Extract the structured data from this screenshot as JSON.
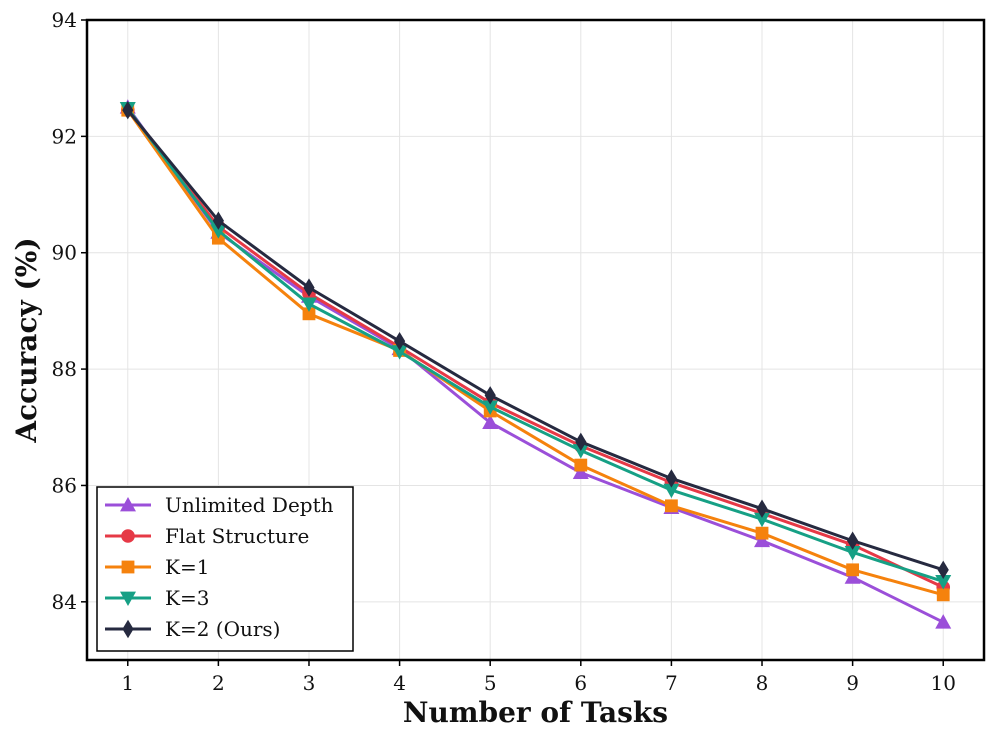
{
  "chart_data": {
    "type": "line",
    "title": "",
    "xlabel": "Number of Tasks",
    "ylabel": "Accuracy (%)",
    "x": [
      1,
      2,
      3,
      4,
      5,
      6,
      7,
      8,
      9,
      10
    ],
    "xlim": [
      0.55,
      10.45
    ],
    "ylim": [
      83.0,
      94.0
    ],
    "yticks": [
      84,
      86,
      88,
      90,
      92,
      94
    ],
    "xticks": [
      1,
      2,
      3,
      4,
      5,
      6,
      7,
      8,
      9,
      10
    ],
    "grid": true,
    "legend_position": "bottom-left",
    "series": [
      {
        "name": "Unlimited Depth",
        "color": "#9b4fd9",
        "marker": "triangle-up",
        "values": [
          92.5,
          90.35,
          89.25,
          88.35,
          87.08,
          86.22,
          85.62,
          85.05,
          84.42,
          83.65
        ]
      },
      {
        "name": "Flat Structure",
        "color": "#e63946",
        "marker": "circle",
        "values": [
          92.45,
          90.45,
          89.3,
          88.38,
          87.42,
          86.68,
          86.05,
          85.52,
          84.98,
          84.25
        ]
      },
      {
        "name": "K=1",
        "color": "#f5820d",
        "marker": "square",
        "values": [
          92.45,
          90.25,
          88.95,
          88.32,
          87.28,
          86.35,
          85.65,
          85.18,
          84.55,
          84.12
        ]
      },
      {
        "name": "K=3",
        "color": "#16a085",
        "marker": "triangle-down",
        "values": [
          92.48,
          90.38,
          89.12,
          88.3,
          87.35,
          86.6,
          85.92,
          85.42,
          84.85,
          84.35
        ]
      },
      {
        "name": "K=2 (Ours)",
        "color": "#262a40",
        "marker": "diamond",
        "values": [
          92.45,
          90.55,
          89.4,
          88.48,
          87.55,
          86.75,
          86.12,
          85.6,
          85.05,
          84.55
        ]
      }
    ]
  }
}
